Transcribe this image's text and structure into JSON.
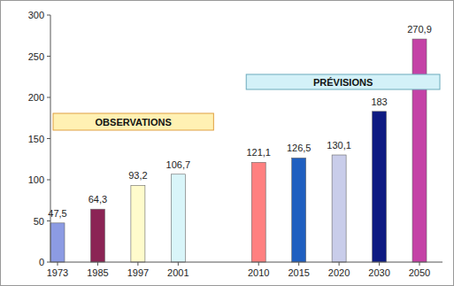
{
  "chart_data": {
    "type": "bar",
    "categories": [
      "1973",
      "1985",
      "1997",
      "2001",
      null,
      "2010",
      "2015",
      "2020",
      "2030",
      "2050"
    ],
    "values": [
      47.5,
      64.3,
      93.2,
      106.7,
      null,
      121.1,
      126.5,
      130.1,
      183,
      270.9
    ],
    "value_labels": [
      "47,5",
      "64,3",
      "93,2",
      "106,7",
      null,
      "121,1",
      "126,5",
      "130,1",
      "183",
      "270,9"
    ],
    "colors": [
      "#8c9be3",
      "#8b2455",
      "#fffbcc",
      "#d9f5f9",
      null,
      "#ff8080",
      "#1f5fc0",
      "#c9cdea",
      "#0e1b82",
      "#c442a6"
    ],
    "ylim": [
      0,
      300
    ],
    "yticks": [
      0,
      50,
      100,
      150,
      200,
      250,
      300
    ],
    "grid": false,
    "data_labels": true,
    "annotations": [
      {
        "text": "OBSERVATIONS"
      },
      {
        "text": "PRÉVISIONS"
      }
    ]
  }
}
